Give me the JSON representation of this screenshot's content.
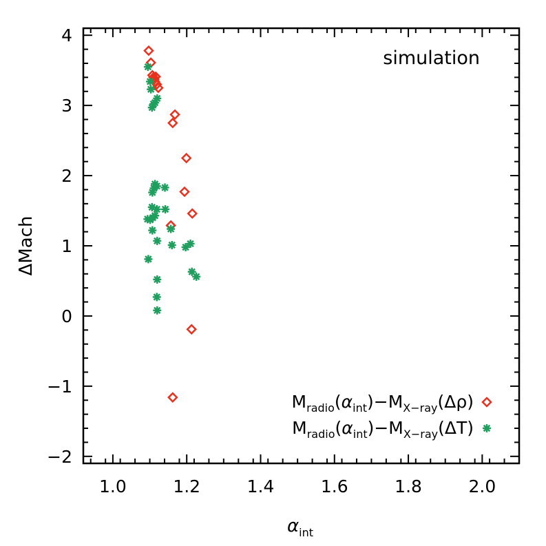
{
  "chart_data": {
    "type": "scatter",
    "title": "",
    "annotation": "simulation",
    "xlabel": {
      "symbol": "α",
      "sub": "int"
    },
    "ylabel": "ΔMach",
    "xlim": [
      0.92,
      2.1
    ],
    "ylim": [
      -2.1,
      4.1
    ],
    "xticks": [
      1.0,
      1.2,
      1.4,
      1.6,
      1.8,
      2.0
    ],
    "xtick_labels": [
      "1.0",
      "1.2",
      "1.4",
      "1.6",
      "1.8",
      "2.0"
    ],
    "yticks": [
      -2,
      -1,
      0,
      1,
      2,
      3,
      4
    ],
    "ytick_labels": [
      "−2",
      "−1",
      "0",
      "1",
      "2",
      "3",
      "4"
    ],
    "series": [
      {
        "name": "Mradio(αint)−MX-ray(Δρ)",
        "legend_parts": {
          "M1": "M",
          "sub1": "radio",
          "open1": "(",
          "alpha": "α",
          "sub_int": "int",
          "close1": ")−M",
          "sub2": "X−ray",
          "tail": "(Δρ)"
        },
        "marker": "diamond",
        "color": "#e8321e",
        "points": [
          [
            1.097,
            3.78
          ],
          [
            1.103,
            3.61
          ],
          [
            1.107,
            3.43
          ],
          [
            1.11,
            3.4
          ],
          [
            1.112,
            3.37
          ],
          [
            1.114,
            3.34
          ],
          [
            1.116,
            3.41
          ],
          [
            1.119,
            3.3
          ],
          [
            1.123,
            3.25
          ],
          [
            1.162,
            2.75
          ],
          [
            1.168,
            2.87
          ],
          [
            1.199,
            2.25
          ],
          [
            1.194,
            1.77
          ],
          [
            1.215,
            1.46
          ],
          [
            1.157,
            1.29
          ],
          [
            1.213,
            -0.19
          ],
          [
            1.162,
            -1.16
          ]
        ]
      },
      {
        "name": "Mradio(αint)−MX-ray(ΔT)",
        "legend_parts": {
          "M1": "M",
          "sub1": "radio",
          "open1": "(",
          "alpha": "α",
          "sub_int": "int",
          "close1": ")−M",
          "sub2": "X−ray",
          "tail": "(ΔT)"
        },
        "marker": "asterisk",
        "color": "#1f9e5e",
        "points": [
          [
            1.095,
            3.55
          ],
          [
            1.101,
            3.34
          ],
          [
            1.103,
            3.23
          ],
          [
            1.106,
            2.97
          ],
          [
            1.11,
            3.02
          ],
          [
            1.114,
            3.04
          ],
          [
            1.12,
            3.1
          ],
          [
            1.107,
            1.76
          ],
          [
            1.111,
            1.82
          ],
          [
            1.114,
            1.88
          ],
          [
            1.119,
            1.85
          ],
          [
            1.141,
            1.83
          ],
          [
            1.106,
            1.55
          ],
          [
            1.119,
            1.52
          ],
          [
            1.142,
            1.52
          ],
          [
            1.094,
            1.38
          ],
          [
            1.101,
            1.37
          ],
          [
            1.108,
            1.4
          ],
          [
            1.114,
            1.43
          ],
          [
            1.107,
            1.22
          ],
          [
            1.12,
            1.07
          ],
          [
            1.157,
            1.24
          ],
          [
            1.16,
            1.01
          ],
          [
            1.197,
            0.98
          ],
          [
            1.21,
            1.03
          ],
          [
            1.214,
            0.63
          ],
          [
            1.226,
            0.56
          ],
          [
            1.096,
            0.81
          ],
          [
            1.12,
            0.52
          ],
          [
            1.119,
            0.27
          ],
          [
            1.12,
            0.08
          ]
        ]
      }
    ]
  }
}
